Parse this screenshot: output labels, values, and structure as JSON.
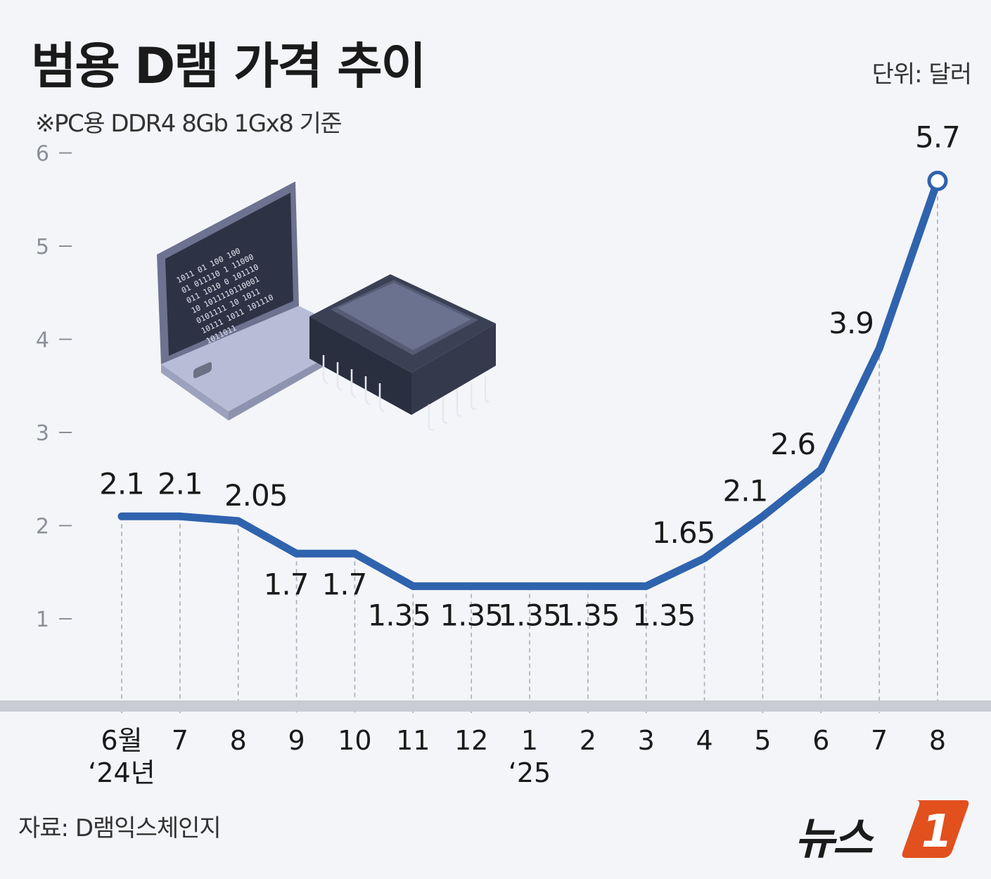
{
  "title": "범용 D램 가격 추이",
  "unit_label": "단위: 달러",
  "subtitle": "※PC용 DDR4 8Gb 1Gx8 기준",
  "source": "자료: D램익스체인지",
  "logo_text": "뉴스",
  "logo_mark": "1",
  "colors": {
    "line": "#2f63ad",
    "axis": "#9aa0a8",
    "text": "#1a1a1a",
    "logo_accent": "#e2501e"
  },
  "chart_data": {
    "type": "line",
    "categories": [
      "6월",
      "7",
      "8",
      "9",
      "10",
      "11",
      "12",
      "1",
      "2",
      "3",
      "4",
      "5",
      "6",
      "7",
      "8"
    ],
    "category_sublabels": [
      "‘24년",
      "",
      "",
      "",
      "",
      "",
      "",
      "‘25",
      "",
      "",
      "",
      "",
      "",
      "",
      ""
    ],
    "series": [
      {
        "values": [
          2.1,
          2.1,
          2.05,
          1.7,
          1.7,
          1.35,
          1.35,
          1.35,
          1.35,
          1.35,
          1.65,
          2.1,
          2.6,
          3.9,
          5.7
        ]
      }
    ],
    "data_labels": [
      "2.1",
      "2.1",
      "2.05",
      "1.7",
      "1.7",
      "1.35",
      "1.35",
      "1.35",
      "1.35",
      "1.35",
      "1.65",
      "2.1",
      "2.6",
      "3.9",
      "5.7"
    ],
    "yticks": [
      "1",
      "2",
      "3",
      "4",
      "5",
      "6"
    ],
    "ylim": [
      0,
      6
    ],
    "grid": false,
    "legend": "none",
    "last_point_marker": "hollow-circle"
  }
}
